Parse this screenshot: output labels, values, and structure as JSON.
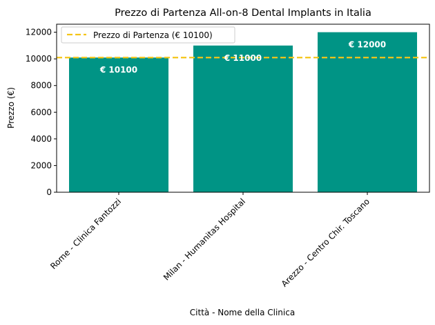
{
  "chart_data": {
    "type": "bar",
    "title": "Prezzo di Partenza All-on-8 Dental Implants in Italia",
    "xlabel": "Città - Nome della Clinica",
    "ylabel": "Prezzo (€)",
    "categories": [
      "Rome - Clinica Fantozzi",
      "Milan - Humanitas Hospital",
      "Arezzo - Centro Chir. Toscano"
    ],
    "values": [
      10100,
      11000,
      12000
    ],
    "value_labels": [
      "€ 10100",
      "€ 11000",
      "€ 12000"
    ],
    "ylim": [
      0,
      12600
    ],
    "yticks": [
      0,
      2000,
      4000,
      6000,
      8000,
      10000,
      12000
    ],
    "ytick_labels": [
      "0",
      "2000",
      "4000",
      "6000",
      "8000",
      "10000",
      "12000"
    ],
    "reference_line": {
      "label": "Prezzo di Partenza (€ 10100)",
      "value": 10100
    },
    "legend_position": "upper-left",
    "grid": false,
    "colors": {
      "bar": "#009485",
      "reference_line": "#f5c518",
      "value_label": "#ffffff"
    }
  }
}
